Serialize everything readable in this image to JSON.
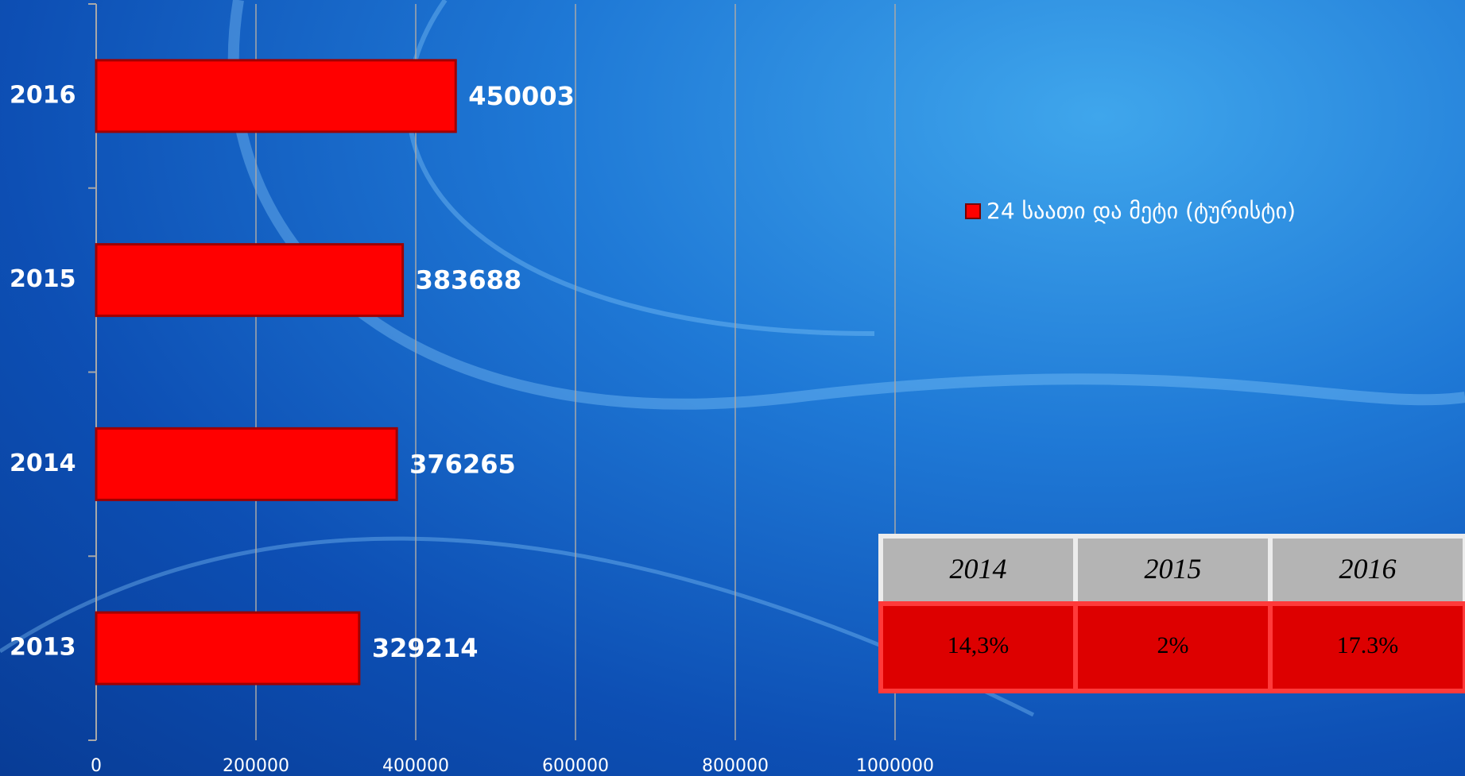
{
  "chart_data": {
    "type": "bar",
    "orientation": "horizontal",
    "categories": [
      "2013",
      "2014",
      "2015",
      "2016"
    ],
    "series": [
      {
        "name": "24 საათი და მეტი (ტურისტი)",
        "color": "#ff0000",
        "values": [
          329214,
          376265,
          383688,
          450003
        ]
      }
    ],
    "xlim": [
      0,
      1000000
    ],
    "xticks": [
      0,
      200000,
      400000,
      600000,
      800000,
      1000000
    ],
    "grid": true,
    "legend": "right"
  },
  "table": {
    "header": [
      "2014",
      "2015",
      "2016"
    ],
    "rows": [
      [
        "14,3%",
        "2%",
        "17.3%"
      ]
    ]
  }
}
